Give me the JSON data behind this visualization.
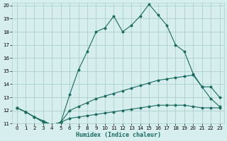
{
  "xlabel": "Humidex (Indice chaleur)",
  "xlim": [
    -0.5,
    23.5
  ],
  "ylim": [
    11,
    20.2
  ],
  "yticks": [
    11,
    12,
    13,
    14,
    15,
    16,
    17,
    18,
    19,
    20
  ],
  "xticks": [
    0,
    1,
    2,
    3,
    4,
    5,
    6,
    7,
    8,
    9,
    10,
    11,
    12,
    13,
    14,
    15,
    16,
    17,
    18,
    19,
    20,
    21,
    22,
    23
  ],
  "background_color": "#d6eeed",
  "grid_color": "#aacfcc",
  "line_color": "#1a6b60",
  "series1_x": [
    0,
    1,
    2,
    3,
    4,
    5,
    6,
    7,
    8,
    9,
    10,
    11,
    12,
    13,
    14,
    15,
    16,
    17,
    18,
    19,
    20,
    21,
    22,
    23
  ],
  "series1_y": [
    12.2,
    11.9,
    11.5,
    11.1,
    10.9,
    11.1,
    13.2,
    15.1,
    16.5,
    18.0,
    18.3,
    19.2,
    18.0,
    18.5,
    19.2,
    20.1,
    19.3,
    18.5,
    17.0,
    16.5,
    14.8,
    13.8,
    13.8,
    13.0
  ],
  "series2_x": [
    0,
    1,
    2,
    3,
    4,
    5,
    6,
    7,
    8,
    9,
    10,
    11,
    12,
    13,
    14,
    15,
    16,
    17,
    18,
    19,
    20,
    21,
    22,
    23
  ],
  "series2_y": [
    12.2,
    11.9,
    11.5,
    11.2,
    10.9,
    11.1,
    12.0,
    12.3,
    12.6,
    12.9,
    13.1,
    13.3,
    13.5,
    13.7,
    13.9,
    14.1,
    14.3,
    14.4,
    14.5,
    14.6,
    14.7,
    13.8,
    12.9,
    12.3
  ],
  "series3_x": [
    0,
    1,
    2,
    3,
    4,
    5,
    6,
    7,
    8,
    9,
    10,
    11,
    12,
    13,
    14,
    15,
    16,
    17,
    18,
    19,
    20,
    21,
    22,
    23
  ],
  "series3_y": [
    12.2,
    11.9,
    11.5,
    11.2,
    10.9,
    11.1,
    11.4,
    11.5,
    11.6,
    11.7,
    11.8,
    11.9,
    12.0,
    12.1,
    12.2,
    12.3,
    12.4,
    12.4,
    12.4,
    12.4,
    12.3,
    12.2,
    12.2,
    12.2
  ]
}
